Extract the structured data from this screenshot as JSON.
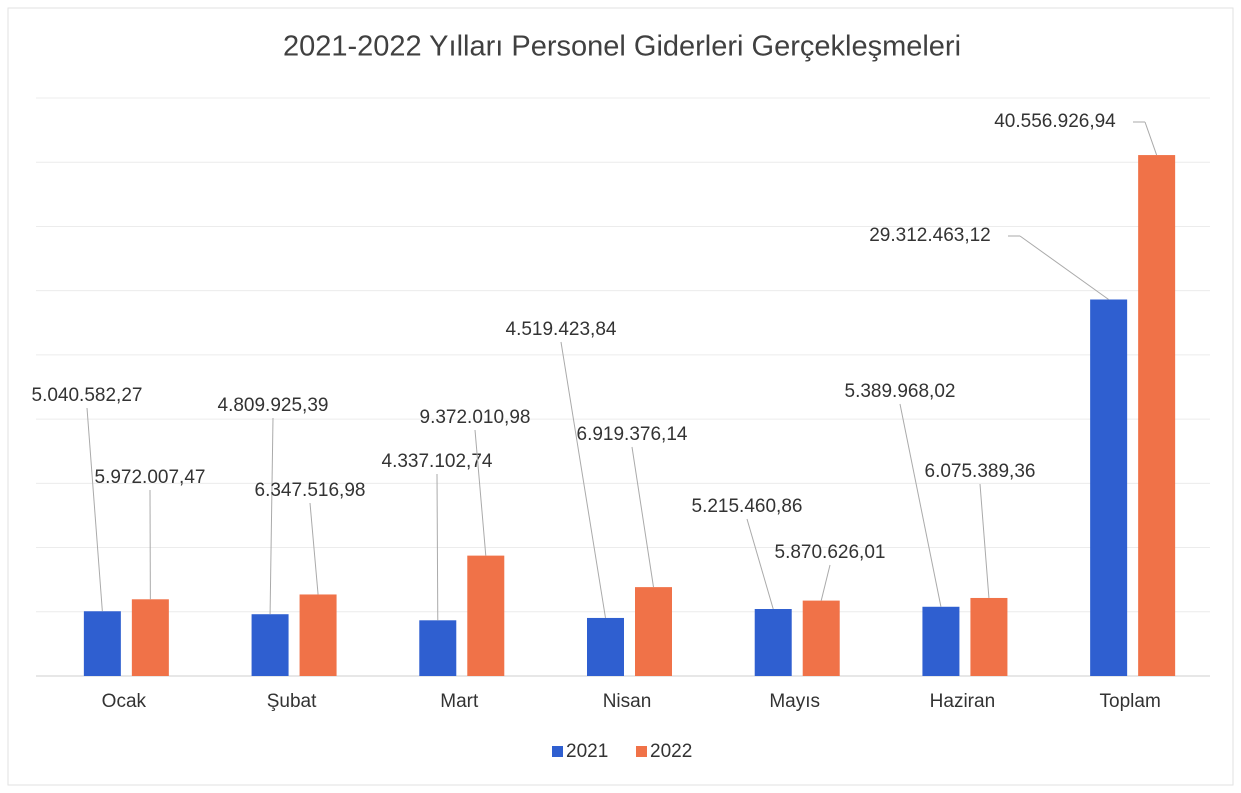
{
  "chart_data": {
    "type": "bar",
    "title": "2021-2022 Yılları Personel Giderleri Gerçekleşmeleri",
    "categories": [
      "Ocak",
      "Şubat",
      "Mart",
      "Nisan",
      "Mayıs",
      "Haziran",
      "Toplam"
    ],
    "series": [
      {
        "name": "2021",
        "color": "#2f5fd0",
        "values": [
          5040582.27,
          4809925.39,
          4337102.74,
          4519423.84,
          5215460.86,
          5389968.02,
          29312463.12
        ],
        "value_labels": [
          "5.040.582,27",
          "4.809.925,39",
          "4.337.102,74",
          "4.519.423,84",
          "5.215.460,86",
          "5.389.968,02",
          "29.312.463,12"
        ]
      },
      {
        "name": "2022",
        "color": "#f07248",
        "values": [
          5972007.47,
          6347516.98,
          9372010.98,
          6919376.14,
          5870626.01,
          6075389.36,
          40556926.94
        ],
        "value_labels": [
          "5.972.007,47",
          "6.347.516,98",
          "9.372.010,98",
          "6.919.376,14",
          "5.870.626,01",
          "6.075.389,36",
          "40.556.926,94"
        ]
      }
    ],
    "ylim": [
      0,
      45000000
    ],
    "yticks": [
      0,
      5000000,
      10000000,
      15000000,
      20000000,
      25000000,
      30000000,
      35000000,
      40000000,
      45000000
    ],
    "grid": true,
    "legend": "bottom"
  }
}
